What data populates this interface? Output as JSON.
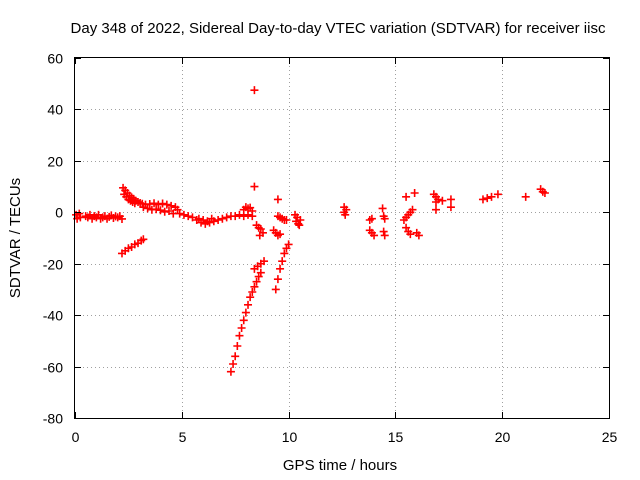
{
  "chart_data": {
    "type": "scatter",
    "title": "Day 348 of 2022, Sidereal Day-to-day VTEC variation (SDTVAR) for receiver iisc",
    "xlabel": "GPS time / hours",
    "ylabel": "SDTVAR / TECUs",
    "xlim": [
      0,
      25
    ],
    "ylim": [
      -80,
      60
    ],
    "xticks": [
      "0",
      "5",
      "10",
      "15",
      "20",
      "25"
    ],
    "yticks": [
      "60",
      "40",
      "20",
      "0",
      "-20",
      "-40",
      "-60",
      "-80"
    ],
    "grid": true,
    "marker": "plus",
    "series": [
      {
        "name": "SDTVAR",
        "color": "#ff0000",
        "points": [
          [
            0.05,
            -1.0
          ],
          [
            0.1,
            -2.5
          ],
          [
            0.2,
            -0.5
          ],
          [
            0.25,
            -2.0
          ],
          [
            0.5,
            -1.5
          ],
          [
            0.6,
            -2.0
          ],
          [
            0.7,
            -1.0
          ],
          [
            0.8,
            -2.5
          ],
          [
            0.9,
            -1.5
          ],
          [
            1.0,
            -2.0
          ],
          [
            1.1,
            -1.0
          ],
          [
            1.2,
            -2.5
          ],
          [
            1.3,
            -2.0
          ],
          [
            1.4,
            -1.5
          ],
          [
            1.5,
            -2.5
          ],
          [
            1.6,
            -1.8
          ],
          [
            1.7,
            -1.2
          ],
          [
            1.8,
            -2.2
          ],
          [
            1.9,
            -1.6
          ],
          [
            2.0,
            -2.0
          ],
          [
            2.1,
            -1.5
          ],
          [
            2.2,
            -2.6
          ],
          [
            2.25,
            9.5
          ],
          [
            2.35,
            8.5
          ],
          [
            2.45,
            7.5
          ],
          [
            2.55,
            6.5
          ],
          [
            2.65,
            5.8
          ],
          [
            2.75,
            5.2
          ],
          [
            2.85,
            4.5
          ],
          [
            2.95,
            4.0
          ],
          [
            3.05,
            3.6
          ],
          [
            3.15,
            3.3
          ],
          [
            2.3,
            7.0
          ],
          [
            2.4,
            6.0
          ],
          [
            2.5,
            5.0
          ],
          [
            2.6,
            4.5
          ],
          [
            2.7,
            4.0
          ],
          [
            2.8,
            3.5
          ],
          [
            3.3,
            3.0
          ],
          [
            3.5,
            3.2
          ],
          [
            3.7,
            3.5
          ],
          [
            3.9,
            3.0
          ],
          [
            4.1,
            3.4
          ],
          [
            4.3,
            3.0
          ],
          [
            4.5,
            2.5
          ],
          [
            4.7,
            2.0
          ],
          [
            4.8,
            1.0
          ],
          [
            3.2,
            2.0
          ],
          [
            3.4,
            1.5
          ],
          [
            3.6,
            1.0
          ],
          [
            3.8,
            1.2
          ],
          [
            4.0,
            0.8
          ],
          [
            4.2,
            0.2
          ],
          [
            4.4,
            0.5
          ],
          [
            4.6,
            -0.5
          ],
          [
            4.9,
            -0.5
          ],
          [
            5.1,
            -1.0
          ],
          [
            5.3,
            -1.5
          ],
          [
            5.5,
            -2.0
          ],
          [
            5.7,
            -3.0
          ],
          [
            5.9,
            -4.0
          ],
          [
            6.1,
            -4.5
          ],
          [
            6.3,
            -4.0
          ],
          [
            6.5,
            -3.5
          ],
          [
            6.7,
            -3.0
          ],
          [
            5.8,
            -2.5
          ],
          [
            6.0,
            -3.0
          ],
          [
            6.2,
            -3.5
          ],
          [
            6.4,
            -2.5
          ],
          [
            6.9,
            -2.5
          ],
          [
            7.1,
            -2.0
          ],
          [
            7.3,
            -1.5
          ],
          [
            7.5,
            -1.5
          ],
          [
            7.7,
            -1.0
          ],
          [
            7.9,
            -1.5
          ],
          [
            8.1,
            -1.0
          ],
          [
            8.3,
            -1.5
          ],
          [
            7.9,
            1.0
          ],
          [
            8.0,
            2.0
          ],
          [
            8.1,
            1.5
          ],
          [
            8.2,
            1.8
          ],
          [
            8.3,
            0.5
          ],
          [
            2.2,
            -16.0
          ],
          [
            2.35,
            -15.0
          ],
          [
            2.5,
            -14.0
          ],
          [
            2.65,
            -13.5
          ],
          [
            2.8,
            -12.5
          ],
          [
            2.95,
            -12.0
          ],
          [
            3.1,
            -11.0
          ],
          [
            3.2,
            -10.5
          ],
          [
            7.3,
            -62.0
          ],
          [
            7.4,
            -59.0
          ],
          [
            7.5,
            -56.0
          ],
          [
            7.6,
            -52.0
          ],
          [
            7.7,
            -48.0
          ],
          [
            7.8,
            -45.0
          ],
          [
            7.9,
            -42.0
          ],
          [
            8.0,
            -39.0
          ],
          [
            8.1,
            -36.0
          ],
          [
            8.2,
            -33.0
          ],
          [
            8.3,
            -31.0
          ],
          [
            8.4,
            -29.0
          ],
          [
            8.5,
            -27.0
          ],
          [
            8.6,
            -25.0
          ],
          [
            8.7,
            -23.5
          ],
          [
            8.4,
            -22.0
          ],
          [
            8.55,
            -21.0
          ],
          [
            8.7,
            -20.0
          ],
          [
            8.85,
            -19.0
          ],
          [
            8.4,
            47.5
          ],
          [
            8.4,
            10.0
          ],
          [
            9.5,
            5.0
          ],
          [
            8.5,
            -5.0
          ],
          [
            8.6,
            -6.0
          ],
          [
            8.7,
            -6.5
          ],
          [
            8.8,
            -8.0
          ],
          [
            8.65,
            -9.0
          ],
          [
            9.3,
            -7.0
          ],
          [
            9.4,
            -8.0
          ],
          [
            9.5,
            -9.0
          ],
          [
            9.6,
            -8.5
          ],
          [
            9.5,
            -1.5
          ],
          [
            9.6,
            -2.0
          ],
          [
            9.7,
            -2.5
          ],
          [
            9.8,
            -3.0
          ],
          [
            9.9,
            -3.0
          ],
          [
            9.4,
            -30.0
          ],
          [
            9.5,
            -26.0
          ],
          [
            9.6,
            -22.0
          ],
          [
            9.7,
            -19.0
          ],
          [
            9.8,
            -16.0
          ],
          [
            9.9,
            -14.0
          ],
          [
            10.0,
            -12.5
          ],
          [
            10.3,
            -1.0
          ],
          [
            10.35,
            -3.5
          ],
          [
            10.4,
            -2.0
          ],
          [
            10.45,
            -4.5
          ],
          [
            10.5,
            -5.0
          ],
          [
            10.55,
            -3.0
          ],
          [
            12.6,
            2.0
          ],
          [
            12.6,
            0.0
          ],
          [
            12.65,
            -1.0
          ],
          [
            12.7,
            1.0
          ],
          [
            13.8,
            -3.0
          ],
          [
            13.9,
            -2.5
          ],
          [
            13.8,
            -7.0
          ],
          [
            13.9,
            -8.0
          ],
          [
            14.0,
            -9.0
          ],
          [
            14.4,
            1.5
          ],
          [
            14.45,
            -1.5
          ],
          [
            14.5,
            -2.5
          ],
          [
            14.45,
            -7.5
          ],
          [
            14.5,
            -9.0
          ],
          [
            15.4,
            -3.0
          ],
          [
            15.5,
            -2.0
          ],
          [
            15.6,
            -1.0
          ],
          [
            15.7,
            0.0
          ],
          [
            15.8,
            1.0
          ],
          [
            15.5,
            -6.0
          ],
          [
            15.6,
            -7.5
          ],
          [
            15.7,
            -8.5
          ],
          [
            15.5,
            6.0
          ],
          [
            15.9,
            7.5
          ],
          [
            16.0,
            -8.0
          ],
          [
            16.1,
            -9.0
          ],
          [
            16.8,
            7.0
          ],
          [
            16.9,
            6.0
          ],
          [
            16.9,
            4.0
          ],
          [
            17.0,
            5.0
          ],
          [
            16.9,
            1.0
          ],
          [
            17.2,
            4.5
          ],
          [
            17.6,
            5.0
          ],
          [
            17.6,
            2.0
          ],
          [
            19.1,
            5.0
          ],
          [
            19.3,
            5.5
          ],
          [
            19.5,
            6.0
          ],
          [
            19.8,
            7.0
          ],
          [
            21.1,
            6.0
          ],
          [
            21.8,
            9.0
          ],
          [
            21.9,
            8.0
          ],
          [
            22.0,
            7.5
          ]
        ]
      }
    ]
  }
}
